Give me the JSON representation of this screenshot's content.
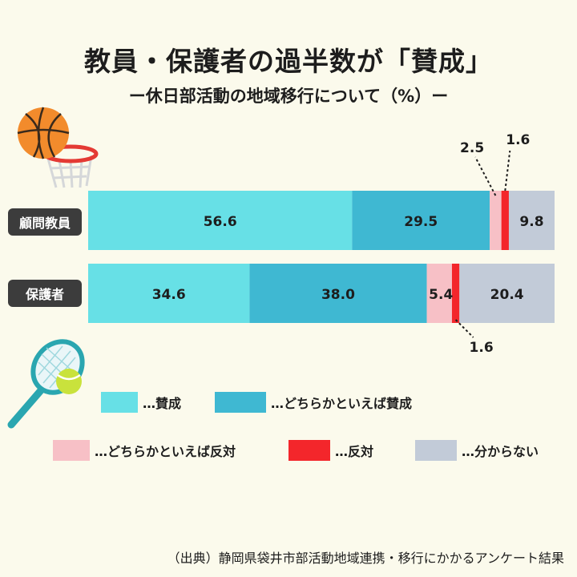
{
  "title": "教員・保護者の過半数が「賛成」",
  "subtitle": "ー休日部活動の地域移行について（%）ー",
  "colors": {
    "support": "#67e0e6",
    "somewhat_support": "#3fb8d2",
    "somewhat_oppose": "#f7c0c6",
    "oppose": "#f3262b",
    "unknown": "#c2cbd8"
  },
  "chart_data": {
    "type": "bar",
    "orientation": "horizontal",
    "stacked": true,
    "unit": "%",
    "categories": [
      "顧問教員",
      "保護者"
    ],
    "series": [
      {
        "name": "賛成",
        "values": [
          56.6,
          34.6
        ]
      },
      {
        "name": "どちらかといえば賛成",
        "values": [
          29.5,
          38.0
        ]
      },
      {
        "name": "どちらかといえば反対",
        "values": [
          2.5,
          5.4
        ]
      },
      {
        "name": "反対",
        "values": [
          1.6,
          1.6
        ]
      },
      {
        "name": "分からない",
        "values": [
          9.8,
          20.4
        ]
      }
    ],
    "data_labels": [
      [
        "56.6",
        "29.5",
        "2.5",
        "1.6",
        "9.8"
      ],
      [
        "34.6",
        "38.0",
        "5.4",
        "1.6",
        "20.4"
      ]
    ],
    "legend": [
      "…賛成",
      "…どちらかといえば賛成",
      "…どちらかといえば反対",
      "…反対",
      "…分からない"
    ],
    "legend_position": "bottom",
    "grid": false
  },
  "source": "（出典）静岡県袋井市部活動地域連携・移行にかかるアンケート結果",
  "icons": [
    "basketball-hoop-icon",
    "tennis-racket-icon"
  ]
}
